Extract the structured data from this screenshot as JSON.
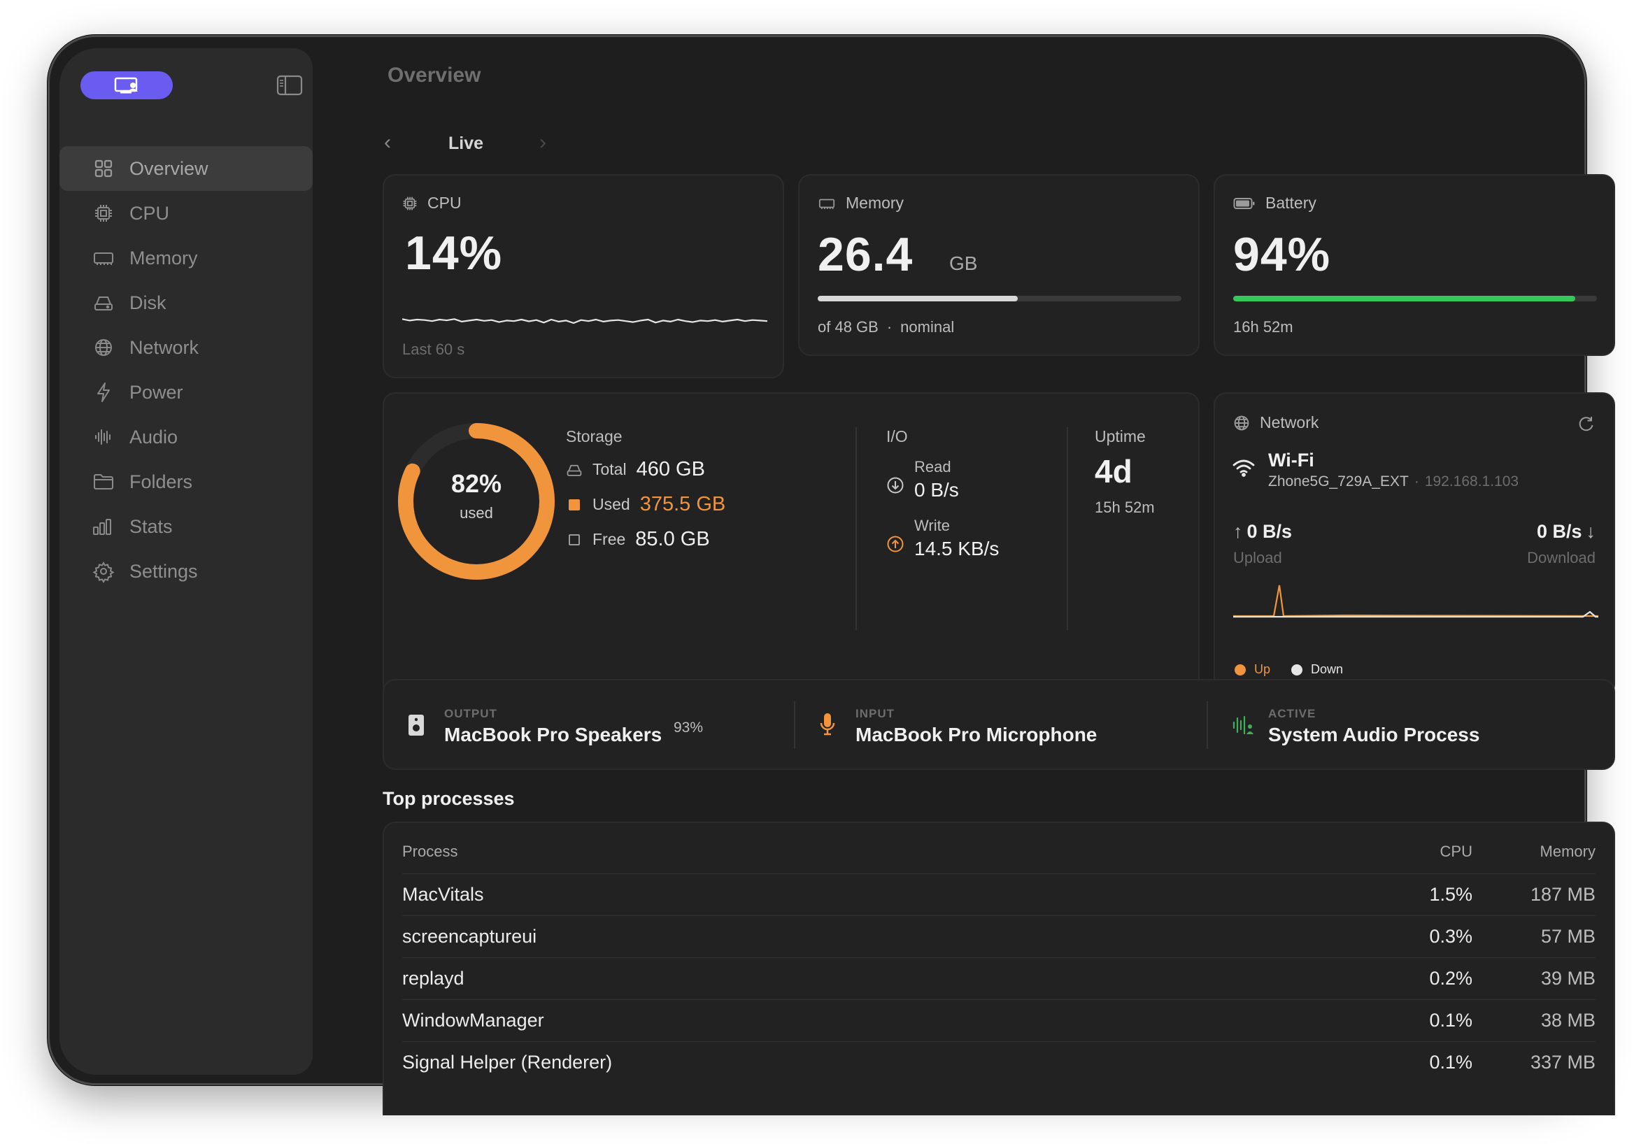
{
  "sidebar": {
    "items": [
      {
        "label": "Overview",
        "icon": "grid-icon",
        "active": true
      },
      {
        "label": "CPU",
        "icon": "chip-icon"
      },
      {
        "label": "Memory",
        "icon": "memory-icon"
      },
      {
        "label": "Disk",
        "icon": "disk-icon"
      },
      {
        "label": "Network",
        "icon": "globe-icon"
      },
      {
        "label": "Power",
        "icon": "bolt-icon"
      },
      {
        "label": "Audio",
        "icon": "waveform-icon"
      },
      {
        "label": "Folders",
        "icon": "folder-icon"
      },
      {
        "label": "Stats",
        "icon": "bar-chart-icon"
      },
      {
        "label": "Settings",
        "icon": "gear-icon"
      }
    ]
  },
  "header": {
    "title": "Overview"
  },
  "period": {
    "label": "Live"
  },
  "cpu": {
    "title": "CPU",
    "value": "14%",
    "caption": "Last 60 s",
    "history": [
      0.52,
      0.46,
      0.5,
      0.48,
      0.44,
      0.5,
      0.47,
      0.52,
      0.42,
      0.46,
      0.5,
      0.45,
      0.48,
      0.4,
      0.46,
      0.44,
      0.5,
      0.43,
      0.48,
      0.38,
      0.5,
      0.42,
      0.46,
      0.36,
      0.48,
      0.44,
      0.5,
      0.42,
      0.46,
      0.48,
      0.44,
      0.4,
      0.46,
      0.5,
      0.38,
      0.46,
      0.42,
      0.5,
      0.44,
      0.4,
      0.46,
      0.44,
      0.48,
      0.42,
      0.46,
      0.5,
      0.44,
      0.48,
      0.46,
      0.44
    ]
  },
  "memory": {
    "title": "Memory",
    "value": "26.4",
    "unit": "GB",
    "of": "of 48 GB",
    "sep": "·",
    "pressure": "nominal",
    "fraction": 0.55
  },
  "battery": {
    "title": "Battery",
    "value": "94%",
    "time": "16h 52m",
    "fraction": 0.94,
    "color": "#34c759"
  },
  "storage": {
    "percent": "82%",
    "percent_label": "used",
    "fraction": 0.82,
    "color": "#f0953c",
    "title": "Storage",
    "total_label": "Total",
    "total": "460 GB",
    "used_label": "Used",
    "used": "375.5 GB",
    "free_label": "Free",
    "free": "85.0 GB"
  },
  "io": {
    "title": "I/O",
    "read_label": "Read",
    "read": "0 B/s",
    "write_label": "Write",
    "write": "14.5 KB/s"
  },
  "uptime": {
    "title": "Uptime",
    "days": "4d",
    "rest": "15h 52m"
  },
  "network": {
    "title": "Network",
    "iface": "Wi-Fi",
    "ssid": "Zhone5G_729A_EXT",
    "sep": "·",
    "ip": "192.168.1.103",
    "up_value": "0 B/s",
    "up_label": "Upload",
    "down_value": "0 B/s",
    "down_label": "Download",
    "legend_up": "Up",
    "legend_down": "Down",
    "up_color": "#f0953c",
    "down_color": "#e6e6e6"
  },
  "audio": {
    "output": {
      "kicker": "OUTPUT",
      "name": "MacBook Pro Speakers",
      "volume": "93%"
    },
    "input": {
      "kicker": "INPUT",
      "name": "MacBook Pro Microphone"
    },
    "active": {
      "kicker": "ACTIVE",
      "name": "System Audio Process"
    }
  },
  "processes": {
    "title": "Top processes",
    "columns": {
      "name": "Process",
      "cpu": "CPU",
      "mem": "Memory"
    },
    "rows": [
      {
        "name": "MacVitals",
        "cpu": "1.5%",
        "mem": "187 MB"
      },
      {
        "name": "screencaptureui",
        "cpu": "0.3%",
        "mem": "57 MB"
      },
      {
        "name": "replayd",
        "cpu": "0.2%",
        "mem": "39 MB"
      },
      {
        "name": "WindowManager",
        "cpu": "0.1%",
        "mem": "38 MB"
      },
      {
        "name": "Signal Helper (Renderer)",
        "cpu": "0.1%",
        "mem": "337 MB"
      }
    ]
  }
}
